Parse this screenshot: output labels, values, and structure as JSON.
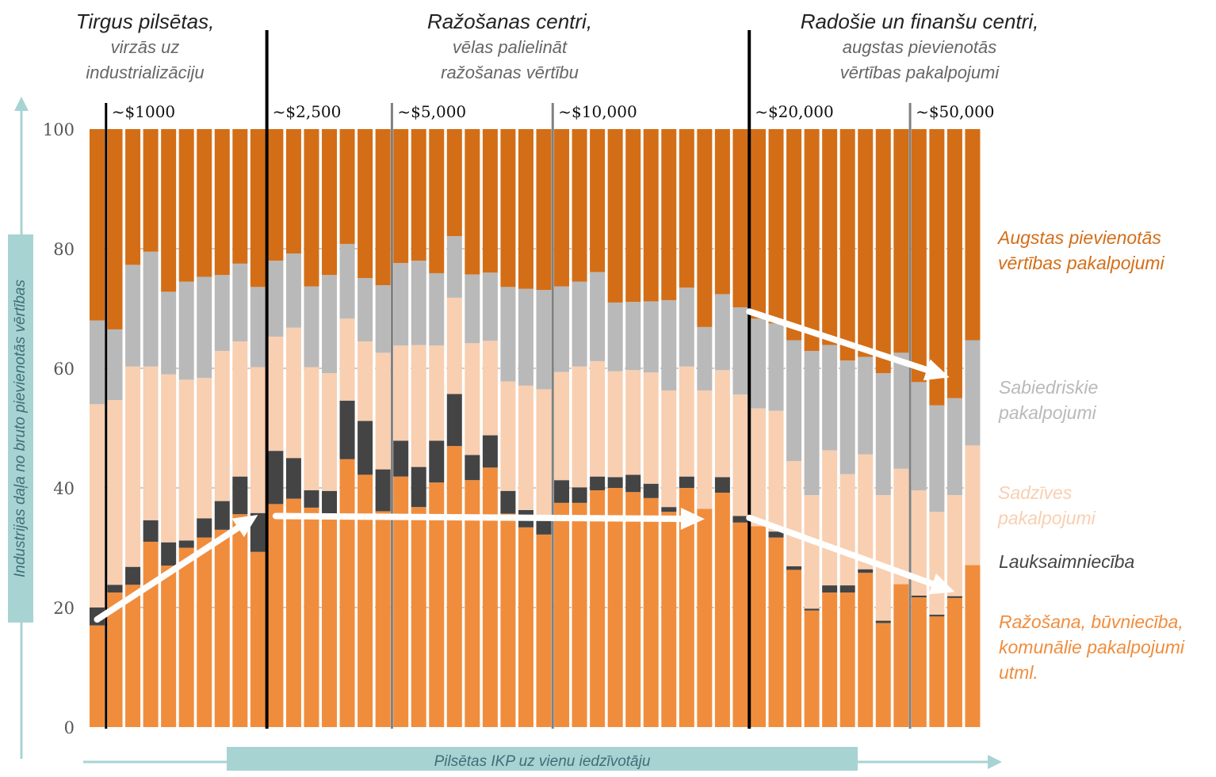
{
  "headers": [
    {
      "title": "Tirgus pilsētas,",
      "subtitle1": "virzās uz",
      "subtitle2": "industrializāciju"
    },
    {
      "title": "Ražošanas centri,",
      "subtitle1": "vēlas palielināt",
      "subtitle2": "ražošanas vērtību"
    },
    {
      "title": "Radošie un finanšu centri,",
      "subtitle1": "augstas pievienotās",
      "subtitle2": "vērtības pakalpojumi"
    }
  ],
  "legend": [
    {
      "line1": "Augstas pievienotās",
      "line2": "vērtības pakalpojumi",
      "color": "#d36e17"
    },
    {
      "line1": "Sabiedriskie",
      "line2": "pakalpojumi",
      "color": "#b9b9b9"
    },
    {
      "line1": "Sadzīves",
      "line2": "pakalpojumi",
      "color": "#f8cfb1"
    },
    {
      "line1": "Lauksaimniecība",
      "line2": "",
      "color": "#444444"
    },
    {
      "line1": "Ražošana, būvniecība,",
      "line2": "komunālie pakalpojumi",
      "line3": "utml.",
      "color": "#f08d3d"
    }
  ],
  "axes": {
    "ylabel": "Industrijas daļa no bruto pievienotās vērtības",
    "xlabel": "Pilsētas IKP uz vienu iedzīvotāju"
  },
  "chart_data": {
    "type": "bar",
    "stacked": true,
    "ylim": [
      0,
      100
    ],
    "yticks": [
      0,
      20,
      40,
      60,
      80,
      100
    ],
    "grid": true,
    "series_order": [
      "Ražošana, būvniecība, komunālie pakalpojumi utml.",
      "Lauksaimniecība",
      "Sadzīves pakalpojumi",
      "Sabiedriskie pakalpojumi",
      "Augstas pievienotās vērtības pakalpojumi"
    ],
    "colors": [
      "#f08d3d",
      "#444444",
      "#f8cfb1",
      "#b9b9b9",
      "#d36e17"
    ],
    "bars": [
      {
        "cum": [
          17,
          20,
          54,
          68
        ]
      },
      {
        "cum": [
          22.5,
          23.8,
          54.7,
          66.5
        ]
      },
      {
        "cum": [
          23.8,
          26.8,
          60.3,
          77.3
        ]
      },
      {
        "cum": [
          31,
          34.6,
          60.3,
          79.5
        ]
      },
      {
        "cum": [
          27,
          30.9,
          59,
          72.8
        ]
      },
      {
        "cum": [
          30,
          31.2,
          58.1,
          74.5
        ]
      },
      {
        "cum": [
          31.7,
          34.9,
          58.4,
          75.3
        ]
      },
      {
        "cum": [
          33,
          37.8,
          62.9,
          75.6
        ]
      },
      {
        "cum": [
          35.6,
          41.9,
          64.5,
          77.5
        ]
      },
      {
        "cum": [
          29.3,
          35.8,
          60.2,
          73.6
        ]
      },
      {
        "cum": [
          37.3,
          46.2,
          65.3,
          78
        ]
      },
      {
        "cum": [
          38.2,
          45,
          66.8,
          79.2
        ]
      },
      {
        "cum": [
          36.7,
          39.6,
          60.2,
          73.7
        ]
      },
      {
        "cum": [
          34.8,
          39.5,
          59.2,
          75.6
        ]
      },
      {
        "cum": [
          44.8,
          54.6,
          68.3,
          80.8
        ]
      },
      {
        "cum": [
          42.2,
          51.2,
          64.5,
          75.1
        ]
      },
      {
        "cum": [
          36.1,
          43.1,
          62.6,
          73.9
        ]
      },
      {
        "cum": [
          41.9,
          47.9,
          63.8,
          77.6
        ]
      },
      {
        "cum": [
          36.8,
          43.5,
          63.9,
          78
        ]
      },
      {
        "cum": [
          40.9,
          47.9,
          63.8,
          75.9
        ]
      },
      {
        "cum": [
          47,
          55.7,
          71.8,
          82.1
        ]
      },
      {
        "cum": [
          41.3,
          45.5,
          64.2,
          75.7
        ]
      },
      {
        "cum": [
          43.4,
          48.8,
          64.6,
          76
        ]
      },
      {
        "cum": [
          35.7,
          39.5,
          57.8,
          73.6
        ]
      },
      {
        "cum": [
          33.4,
          36.3,
          57.1,
          73.3
        ]
      },
      {
        "cum": [
          32.2,
          34.8,
          56.5,
          73.1
        ]
      },
      {
        "cum": [
          37.5,
          41.3,
          59.4,
          73.7
        ]
      },
      {
        "cum": [
          37.5,
          40.1,
          60.3,
          74.5
        ]
      },
      {
        "cum": [
          39.6,
          41.9,
          61.2,
          76.1
        ]
      },
      {
        "cum": [
          40,
          41.8,
          59.5,
          71
        ]
      },
      {
        "cum": [
          39.3,
          42.2,
          59.7,
          71.1
        ]
      },
      {
        "cum": [
          38.3,
          40.7,
          59.3,
          71.2
        ]
      },
      {
        "cum": [
          36,
          36.8,
          56.3,
          71.4
        ]
      },
      {
        "cum": [
          40,
          41.9,
          60.3,
          73.5
        ]
      },
      {
        "cum": [
          36.5,
          36.5,
          56.3,
          66.9
        ]
      },
      {
        "cum": [
          39.2,
          41.8,
          59.7,
          72.4
        ]
      },
      {
        "cum": [
          34.2,
          35.3,
          55.6,
          70.2
        ]
      },
      {
        "cum": [
          33.6,
          33.6,
          53.3,
          68.3
        ]
      },
      {
        "cum": [
          31.7,
          32.7,
          52.9,
          67.5
        ]
      },
      {
        "cum": [
          26.3,
          26.9,
          44.5,
          64.7
        ]
      },
      {
        "cum": [
          19.5,
          19.8,
          38.8,
          62.9
        ]
      },
      {
        "cum": [
          22.5,
          23.7,
          46.3,
          63.9
        ]
      },
      {
        "cum": [
          22.5,
          23.7,
          42.3,
          61.3
        ]
      },
      {
        "cum": [
          25.8,
          26.4,
          45.6,
          61.9
        ]
      },
      {
        "cum": [
          17.4,
          17.8,
          38.8,
          59.2
        ]
      },
      {
        "cum": [
          23.9,
          23.9,
          43.2,
          62.6
        ]
      },
      {
        "cum": [
          21.7,
          22,
          39.6,
          57.7
        ]
      },
      {
        "cum": [
          18.5,
          18.8,
          36,
          53.8
        ]
      },
      {
        "cum": [
          21.6,
          21.9,
          38.8,
          55
        ]
      },
      {
        "cum": [
          27.1,
          27.1,
          47.1,
          64.7
        ]
      }
    ],
    "thresholds": [
      {
        "label": "~$1000",
        "after_bar": 0,
        "style": "black"
      },
      {
        "label": "~$2,500",
        "after_bar": 9,
        "style": "black_tall"
      },
      {
        "label": "~$5,000",
        "after_bar": 16,
        "style": "gray"
      },
      {
        "label": "~$10,000",
        "after_bar": 25,
        "style": "gray"
      },
      {
        "label": "~$20,000",
        "after_bar": 36,
        "style": "black_tall"
      },
      {
        "label": "~$50,000",
        "after_bar": 45,
        "style": "gray"
      }
    ],
    "arrows": [
      {
        "from": [
          0,
          18
        ],
        "to": [
          9,
          35.5
        ]
      },
      {
        "from": [
          10,
          35.3
        ],
        "to": [
          34,
          34.8
        ]
      },
      {
        "from": [
          36.5,
          35
        ],
        "to": [
          48,
          22.6
        ]
      },
      {
        "from": [
          36.5,
          69.5
        ],
        "to": [
          47.7,
          58.5
        ]
      }
    ]
  }
}
